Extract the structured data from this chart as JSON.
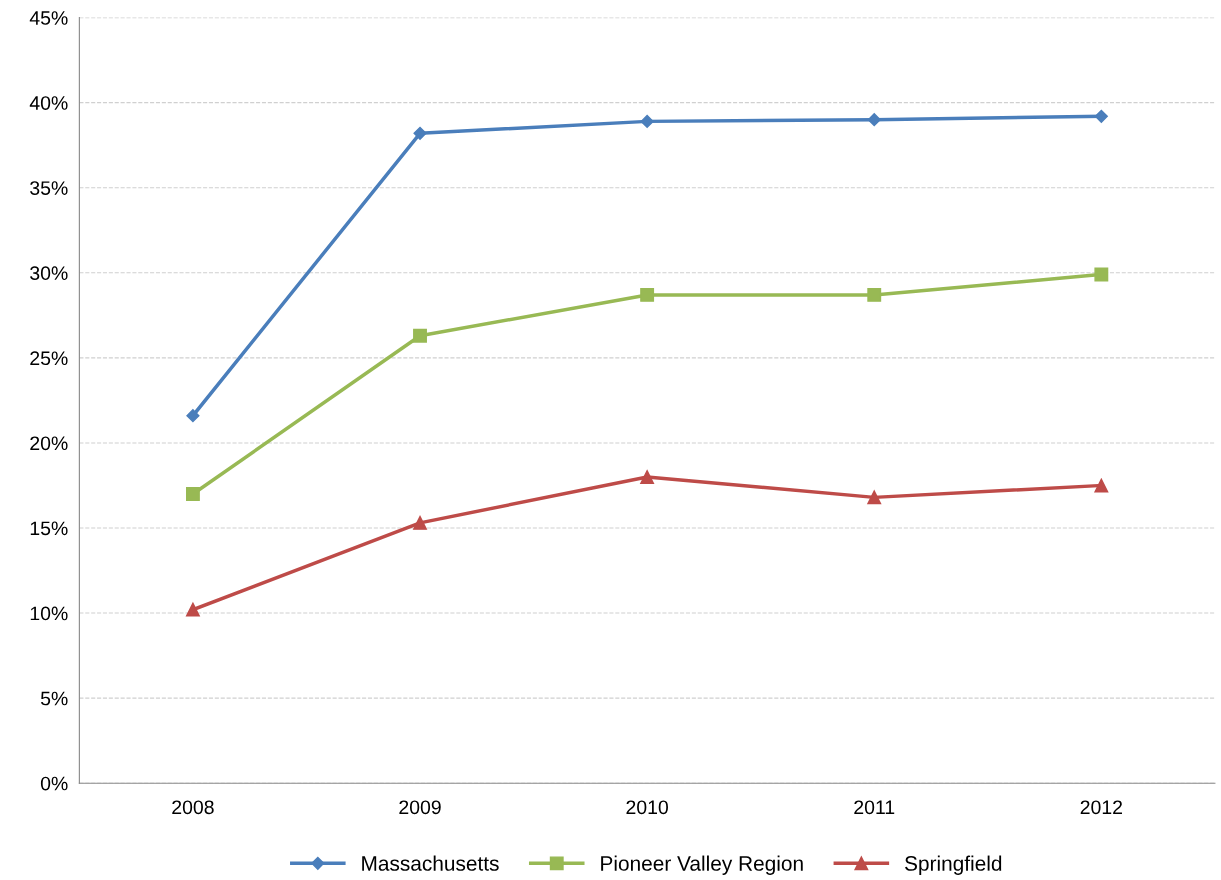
{
  "chart_data": {
    "type": "line",
    "categories": [
      "2008",
      "2009",
      "2010",
      "2011",
      "2012"
    ],
    "series": [
      {
        "name": "Massachusetts",
        "color": "#4a7ebb",
        "marker": "diamond",
        "values": [
          21.6,
          38.2,
          38.9,
          39.0,
          39.2
        ]
      },
      {
        "name": "Pioneer Valley Region",
        "color": "#98b954",
        "marker": "square",
        "values": [
          17.0,
          26.3,
          28.7,
          28.7,
          29.9
        ]
      },
      {
        "name": "Springfield",
        "color": "#be4b48",
        "marker": "triangle",
        "values": [
          10.2,
          15.3,
          18.0,
          16.8,
          17.5
        ]
      }
    ],
    "ylim": [
      0,
      45
    ],
    "yticks": [
      {
        "value": 0,
        "label": "0%"
      },
      {
        "value": 5,
        "label": "5%"
      },
      {
        "value": 10,
        "label": "10%"
      },
      {
        "value": 15,
        "label": "15%"
      },
      {
        "value": 20,
        "label": "20%"
      },
      {
        "value": 25,
        "label": "25%"
      },
      {
        "value": 30,
        "label": "30%"
      },
      {
        "value": 35,
        "label": "35%"
      },
      {
        "value": 40,
        "label": "40%"
      },
      {
        "value": 45,
        "label": "45%"
      }
    ],
    "grid": "y",
    "legend": "bottom",
    "line_style": "solid"
  }
}
